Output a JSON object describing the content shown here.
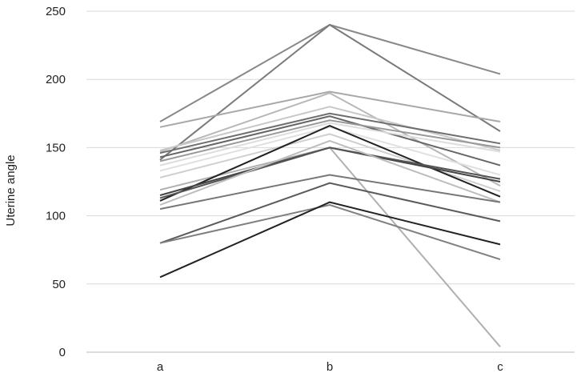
{
  "chart_data": {
    "type": "line",
    "categories": [
      "a",
      "b",
      "c"
    ],
    "ylabel": "Uterine angle",
    "xlabel": "",
    "ylim": [
      0,
      250
    ],
    "yticks": [
      0,
      50,
      100,
      150,
      200,
      250
    ],
    "grid": "horizontal",
    "legend": "none",
    "series": [
      {
        "values": [
          169,
          240,
          204
        ],
        "color": "#888888"
      },
      {
        "values": [
          141,
          240,
          162
        ],
        "color": "#7a7a7a"
      },
      {
        "values": [
          165,
          191,
          169
        ],
        "color": "#a8a8a8"
      },
      {
        "values": [
          147,
          190,
          122
        ],
        "color": "#b8b8b8"
      },
      {
        "values": [
          148,
          180,
          148
        ],
        "color": "#c8c8c8"
      },
      {
        "values": [
          146,
          175,
          153
        ],
        "color": "#6e6e6e"
      },
      {
        "values": [
          143,
          173,
          137
        ],
        "color": "#666666"
      },
      {
        "values": [
          140,
          170,
          150
        ],
        "color": "#999999"
      },
      {
        "values": [
          137,
          168,
          147
        ],
        "color": "#dddddd"
      },
      {
        "values": [
          133,
          165,
          130
        ],
        "color": "#e0e0e0"
      },
      {
        "values": [
          128,
          160,
          118
        ],
        "color": "#cfcfcf"
      },
      {
        "values": [
          119,
          150,
          4
        ],
        "color": "#b0b0b0"
      },
      {
        "values": [
          111,
          166,
          114
        ],
        "color": "#222222"
      },
      {
        "values": [
          115,
          150,
          125
        ],
        "color": "#444444"
      },
      {
        "values": [
          113,
          150,
          127
        ],
        "color": "#555555"
      },
      {
        "values": [
          108,
          155,
          110
        ],
        "color": "#bdbdbd"
      },
      {
        "values": [
          105,
          130,
          110
        ],
        "color": "#777777"
      },
      {
        "values": [
          80,
          124,
          96
        ],
        "color": "#5a5a5a"
      },
      {
        "values": [
          80,
          108,
          68
        ],
        "color": "#808080"
      },
      {
        "values": [
          55,
          110,
          79
        ],
        "color": "#222222"
      }
    ]
  }
}
